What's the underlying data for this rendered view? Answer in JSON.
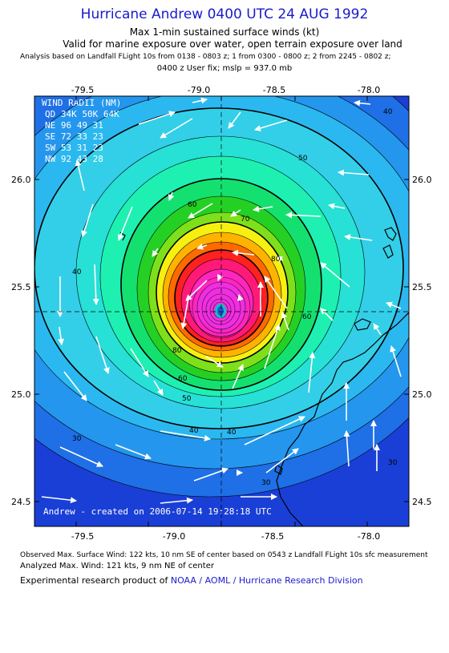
{
  "header": {
    "title": "Hurricane Andrew 0400 UTC 24 AUG 1992",
    "subtitle": "Max 1-min sustained surface winds (kt)",
    "valid": "Valid for marine exposure over water, open terrain exposure over land",
    "analysis": "Analysis based on  Landfall FLight 10s from 0138 - 0803 z;  1 from 0300 - 0800 z;  2 from 2245 - 0802 z;",
    "userfix": "0400 z User fix; mslp = 937.0 mb"
  },
  "map": {
    "lon_ticks": [
      "-79.5",
      "-79.0",
      "-78.5",
      "-78.0"
    ],
    "lat_ticks": [
      "26.0",
      "25.5",
      "25.0",
      "24.5"
    ],
    "contour_labels": [
      "40",
      "50",
      "60",
      "70",
      "80",
      "30"
    ],
    "wind_radii": {
      "title": "WIND RADII (NM)",
      "header": "QD  34K  50K  64K",
      "rows": [
        "NE   96   49   31",
        "SE   72   33   23",
        "SW   53   31   23",
        "NW   92   43   28"
      ]
    },
    "creation": "Andrew - created on 2006-07-14 19:28:18 UTC"
  },
  "footer": {
    "observed": "Observed Max. Surface Wind: 122 kts, 10 nm SE of center based on 0543 z Landfall FLight 10s sfc measurement",
    "analyzed": "Analyzed Max. Wind: 121 kts, 9 nm NE of center",
    "credit_prefix": "Experimental research product of",
    "credit_org": "NOAA / AOML / Hurricane Research Division"
  }
}
